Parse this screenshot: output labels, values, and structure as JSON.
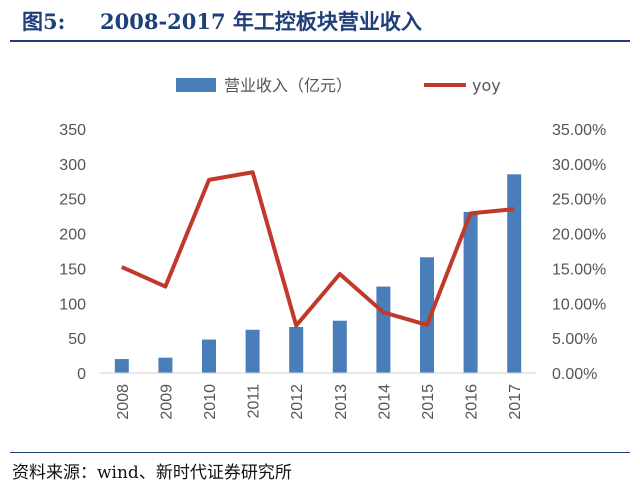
{
  "figure": {
    "number": "图5:",
    "title": "2008-2017 年工控板块营业收入",
    "source": "资料来源：wind、新时代证券研究所"
  },
  "colors": {
    "bar": "#4a7ebb",
    "line": "#c0392b",
    "title": "#1f3f7a"
  },
  "chart_data": {
    "type": "bar",
    "categories": [
      "2008",
      "2009",
      "2010",
      "2011",
      "2012",
      "2013",
      "2014",
      "2015",
      "2016",
      "2017"
    ],
    "series": [
      {
        "name": "营业收入（亿元）",
        "type": "bar",
        "axis": "left",
        "values": [
          20,
          22,
          48,
          62,
          66,
          75,
          124,
          166,
          231,
          285
        ]
      },
      {
        "name": "yoy",
        "type": "line",
        "axis": "right",
        "values": [
          15.2,
          12.4,
          27.7,
          28.8,
          6.8,
          14.2,
          8.7,
          6.9,
          22.9,
          23.5
        ]
      }
    ],
    "ylim_left": [
      0,
      350
    ],
    "ylim_right": [
      0,
      35
    ],
    "left_ticks": [
      "0",
      "50",
      "100",
      "150",
      "200",
      "250",
      "300",
      "350"
    ],
    "right_ticks": [
      "0.00%",
      "5.00%",
      "10.00%",
      "15.00%",
      "20.00%",
      "25.00%",
      "30.00%",
      "35.00%"
    ],
    "legend": "top",
    "grid": false
  }
}
